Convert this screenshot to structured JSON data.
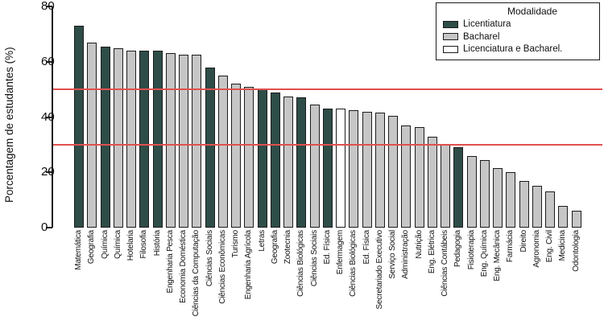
{
  "chart_data": {
    "type": "bar",
    "title": "",
    "xlabel": "",
    "ylabel": "Porcentagem de estudantes (%)",
    "ylim": [
      0,
      80
    ],
    "yticks": [
      0,
      20,
      40,
      60,
      80
    ],
    "grid": false,
    "reference_lines": [
      {
        "y": 50,
        "color": "#e0504d"
      },
      {
        "y": 30,
        "color": "#e0504d"
      }
    ],
    "legend": {
      "title": "Modalidade",
      "position": "top-right",
      "items": [
        {
          "key": "licenciatura",
          "label": "Licentiatura",
          "color": "#2e4d48"
        },
        {
          "key": "bacharel",
          "label": "Bacharel",
          "color": "#c6c6c6"
        },
        {
          "key": "licenciatura_bacharel",
          "label": "Licenciatura e Bacharel.",
          "color": "#ffffff"
        }
      ]
    },
    "colors": {
      "bar_border": "#1c1c1c",
      "axis": "#1c1c1c"
    },
    "bars": [
      {
        "label": "Matemática",
        "value": 73,
        "modality": "licenciatura"
      },
      {
        "label": "Geografia",
        "value": 67,
        "modality": "bacharel"
      },
      {
        "label": "Química",
        "value": 65.5,
        "modality": "licenciatura"
      },
      {
        "label": "Química",
        "value": 65,
        "modality": "bacharel"
      },
      {
        "label": "Hotelaria",
        "value": 64,
        "modality": "bacharel"
      },
      {
        "label": "Filosofia",
        "value": 64,
        "modality": "licenciatura"
      },
      {
        "label": "História",
        "value": 64,
        "modality": "licenciatura"
      },
      {
        "label": "Engenharia Pesca",
        "value": 63,
        "modality": "bacharel"
      },
      {
        "label": "Economia Doméstica",
        "value": 62.5,
        "modality": "bacharel"
      },
      {
        "label": "Ciências da Computação",
        "value": 62.5,
        "modality": "bacharel"
      },
      {
        "label": "Ciências Sociais",
        "value": 58,
        "modality": "licenciatura"
      },
      {
        "label": "Ciências Econômicas",
        "value": 55,
        "modality": "bacharel"
      },
      {
        "label": "Turismo",
        "value": 52,
        "modality": "bacharel"
      },
      {
        "label": "Engenharia Agrícola",
        "value": 51,
        "modality": "bacharel"
      },
      {
        "label": "Letras",
        "value": 50,
        "modality": "licenciatura"
      },
      {
        "label": "Geografia",
        "value": 49,
        "modality": "licenciatura"
      },
      {
        "label": "Zootecnia",
        "value": 47.5,
        "modality": "bacharel"
      },
      {
        "label": "Ciências Biológicas",
        "value": 47,
        "modality": "licenciatura"
      },
      {
        "label": "Ciências Sociais",
        "value": 44.5,
        "modality": "bacharel"
      },
      {
        "label": "Ed. Física",
        "value": 43,
        "modality": "licenciatura"
      },
      {
        "label": "Enfermagem",
        "value": 43,
        "modality": "licenciatura_bacharel"
      },
      {
        "label": "Ciências Biológicas",
        "value": 42.5,
        "modality": "bacharel"
      },
      {
        "label": "Ed. Física",
        "value": 42,
        "modality": "bacharel"
      },
      {
        "label": "Secretariado Executivo",
        "value": 41.5,
        "modality": "bacharel"
      },
      {
        "label": "Serviço Social",
        "value": 40.5,
        "modality": "bacharel"
      },
      {
        "label": "Administração",
        "value": 37,
        "modality": "bacharel"
      },
      {
        "label": "Nutrição",
        "value": 36.5,
        "modality": "bacharel"
      },
      {
        "label": "Eng. Elétrica",
        "value": 33,
        "modality": "bacharel"
      },
      {
        "label": "Ciências Contábeis",
        "value": 30,
        "modality": "bacharel"
      },
      {
        "label": "Pedagogia",
        "value": 29,
        "modality": "licenciatura"
      },
      {
        "label": "Fisioterapia",
        "value": 26,
        "modality": "bacharel"
      },
      {
        "label": "Eng. Química",
        "value": 24.5,
        "modality": "bacharel"
      },
      {
        "label": "Eng. Mecânica",
        "value": 21.5,
        "modality": "bacharel"
      },
      {
        "label": "Farmácia",
        "value": 20,
        "modality": "bacharel"
      },
      {
        "label": "Direito",
        "value": 17,
        "modality": "bacharel"
      },
      {
        "label": "Agronomia",
        "value": 15,
        "modality": "bacharel"
      },
      {
        "label": "Eng. Civil",
        "value": 13,
        "modality": "bacharel"
      },
      {
        "label": "Medicina",
        "value": 8,
        "modality": "bacharel"
      },
      {
        "label": "Odontologia",
        "value": 6,
        "modality": "bacharel"
      }
    ]
  }
}
